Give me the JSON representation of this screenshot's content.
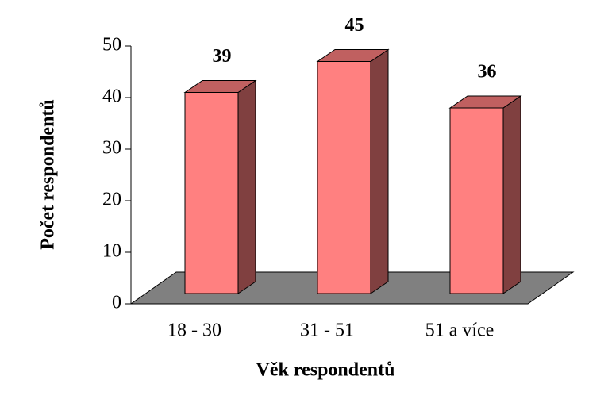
{
  "chart_data": {
    "type": "bar3d",
    "categories": [
      "18 - 30",
      "31 - 51",
      "51 a více"
    ],
    "values": [
      39,
      45,
      36
    ],
    "color": "#ff8080",
    "xlabel": "Věk respondentů",
    "ylabel": "Počet respondentů",
    "ylim": [
      0,
      50
    ],
    "yticks": [
      0,
      10,
      20,
      30,
      40,
      50
    ]
  }
}
